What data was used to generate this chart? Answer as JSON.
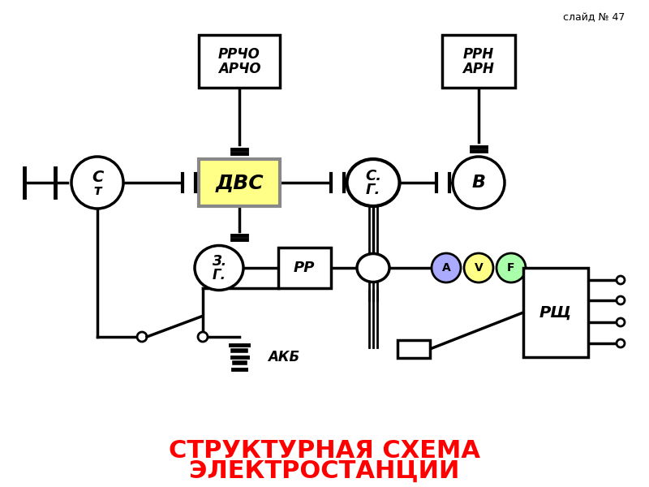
{
  "title_line1": "СТРУКТУРНАЯ СХЕМА",
  "title_line2": "ЭЛЕКТРОСТАНЦИИ",
  "title_color": "#ff0000",
  "title_fontsize": 22,
  "slide_label": "слайд № 47",
  "background_color": "#ffffff",
  "lw": 2.5
}
